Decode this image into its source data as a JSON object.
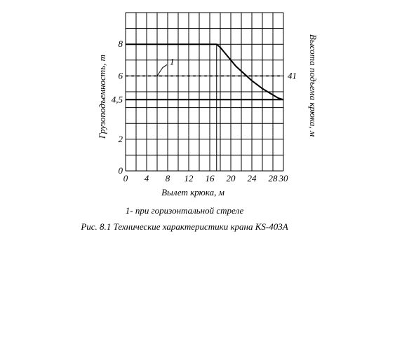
{
  "chart_data": {
    "type": "line",
    "ylabel_left": "Грузоподъемность, т",
    "ylabel_right": "Высота подъема крюка, м",
    "xlabel": "Вылет крюка, м",
    "x_ticks": [
      "0",
      "4",
      "8",
      "12",
      "16",
      "20",
      "24",
      "28",
      "30"
    ],
    "y_ticks": [
      "0",
      "2",
      "4,5",
      "6",
      "8"
    ],
    "right_tick": "41",
    "xlim": [
      0,
      30
    ],
    "ylim": [
      0,
      10
    ],
    "grid": true,
    "series": [
      {
        "x": [
          0,
          16,
          17.3,
          18,
          19,
          20,
          21,
          22,
          23,
          24,
          25,
          26,
          27,
          28,
          29,
          30
        ],
        "y": [
          8,
          8,
          8,
          7.8,
          7.4,
          7.0,
          6.6,
          6.3,
          6.0,
          5.7,
          5.45,
          5.2,
          5.0,
          4.8,
          4.6,
          4.5
        ],
        "style": "solid"
      },
      {
        "x": [
          0,
          30
        ],
        "y": [
          4.5,
          4.5
        ],
        "style": "solid"
      },
      {
        "x": [
          0,
          30
        ],
        "y": [
          6,
          6
        ],
        "style": "dashed",
        "label": "1"
      }
    ]
  },
  "legend_note": "1- при горизонтальной стреле",
  "caption": "Рис. 8.1 Технические характеристики крана КS-403А"
}
